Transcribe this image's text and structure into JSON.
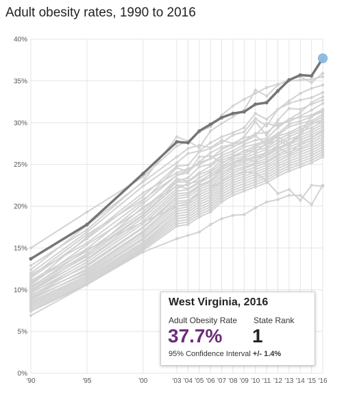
{
  "title": "Adult obesity rates, 1990 to 2016",
  "colors": {
    "highlight": "#757575",
    "background_series": "#d2d2d2",
    "endpoint": "#8fbce0",
    "rate": "#6b2c7a",
    "grid": "#e4e4e4"
  },
  "chart_data": {
    "type": "line",
    "title": "Adult obesity rates, 1990 to 2016",
    "xlabel": "",
    "ylabel": "",
    "x": [
      1990,
      1995,
      2000,
      2003,
      2004,
      2005,
      2006,
      2007,
      2008,
      2009,
      2010,
      2011,
      2012,
      2013,
      2014,
      2015,
      2016
    ],
    "x_tick_labels": [
      "'90",
      "'95",
      "'00",
      "'03",
      "'04",
      "'05",
      "'06",
      "'07",
      "'08",
      "'09",
      "'10",
      "'11",
      "'12",
      "'13",
      "'14",
      "'15",
      "'16"
    ],
    "y_ticks": [
      0,
      5,
      10,
      15,
      20,
      25,
      30,
      35,
      40
    ],
    "y_tick_labels": [
      "0%",
      "5%",
      "10%",
      "15%",
      "20%",
      "25%",
      "30%",
      "35%",
      "40%"
    ],
    "ylim": [
      0,
      40
    ],
    "grid": true,
    "highlight": {
      "name": "West Virginia",
      "values": [
        13.7,
        17.8,
        23.9,
        27.7,
        27.6,
        29.0,
        29.8,
        30.6,
        31.1,
        31.3,
        32.2,
        32.4,
        33.8,
        35.1,
        35.7,
        35.6,
        37.7
      ]
    },
    "series": [
      {
        "values": [
          15.0,
          19.3,
          23.5,
          27.2,
          27.8,
          28.9,
          29.5,
          30.9,
          32.0,
          32.8,
          33.5,
          34.2,
          34.6,
          35.0,
          35.1,
          35.2,
          35.5
        ]
      },
      {
        "values": [
          12.9,
          17.2,
          23.0,
          28.3,
          27.8,
          27.0,
          29.0,
          29.9,
          30.7,
          31.5,
          33.9,
          33.2,
          34.5,
          35.2,
          35.5,
          34.8,
          35.9
        ]
      },
      {
        "values": [
          12.0,
          16.9,
          22.4,
          25.2,
          26.3,
          26.6,
          27.6,
          28.3,
          28.8,
          29.4,
          31.1,
          30.4,
          31.6,
          32.6,
          33.5,
          34.1,
          34.5
        ]
      },
      {
        "values": [
          11.4,
          16.1,
          21.2,
          24.8,
          24.9,
          26.5,
          26.9,
          27.6,
          28.5,
          28.9,
          30.5,
          29.6,
          31.6,
          32.3,
          32.7,
          33.0,
          33.6
        ]
      },
      {
        "values": [
          11.8,
          15.6,
          20.6,
          24.6,
          24.1,
          25.3,
          26.4,
          27.1,
          27.4,
          28.3,
          30.1,
          28.5,
          30.3,
          31.7,
          31.6,
          32.2,
          32.7
        ]
      },
      {
        "values": [
          11.1,
          14.9,
          20.3,
          23.7,
          24.3,
          25.2,
          25.7,
          26.8,
          27.4,
          27.8,
          28.7,
          28.8,
          29.9,
          30.1,
          30.8,
          31.5,
          32.3
        ]
      },
      {
        "values": [
          10.6,
          15.4,
          19.7,
          23.0,
          23.4,
          24.7,
          25.0,
          26.1,
          26.6,
          27.4,
          27.9,
          28.1,
          29.4,
          30.4,
          30.6,
          30.9,
          31.6
        ]
      },
      {
        "values": [
          10.9,
          14.6,
          19.3,
          23.3,
          23.0,
          24.0,
          24.8,
          25.8,
          26.3,
          27.1,
          27.4,
          27.9,
          28.7,
          29.8,
          30.2,
          30.7,
          31.4
        ]
      },
      {
        "values": [
          10.4,
          14.3,
          19.0,
          22.9,
          22.9,
          23.8,
          24.3,
          25.5,
          26.0,
          26.6,
          27.2,
          27.7,
          28.5,
          29.5,
          29.9,
          30.2,
          31.0
        ]
      },
      {
        "values": [
          10.2,
          14.0,
          18.9,
          22.5,
          22.5,
          23.4,
          24.1,
          25.1,
          25.9,
          26.3,
          27.0,
          27.3,
          28.4,
          28.8,
          29.5,
          30.0,
          30.7
        ]
      },
      {
        "values": [
          9.8,
          13.7,
          18.6,
          22.1,
          22.7,
          23.0,
          23.8,
          24.8,
          25.6,
          26.0,
          26.7,
          27.0,
          28.0,
          28.6,
          29.2,
          29.8,
          30.4
        ]
      },
      {
        "values": [
          10.0,
          13.6,
          18.2,
          21.8,
          22.0,
          22.8,
          23.5,
          24.6,
          25.3,
          25.8,
          26.3,
          26.8,
          27.6,
          28.3,
          28.9,
          29.4,
          30.1
        ]
      },
      {
        "values": [
          9.6,
          13.3,
          17.9,
          21.5,
          21.6,
          22.5,
          23.1,
          24.3,
          25.1,
          25.5,
          26.0,
          26.4,
          27.3,
          28.0,
          28.5,
          29.1,
          29.8
        ]
      },
      {
        "values": [
          9.3,
          13.0,
          17.5,
          21.2,
          21.4,
          22.3,
          22.9,
          24.0,
          24.8,
          25.3,
          25.8,
          26.2,
          27.0,
          27.6,
          28.2,
          28.8,
          29.5
        ]
      },
      {
        "values": [
          9.7,
          12.8,
          17.4,
          20.9,
          21.1,
          22.0,
          22.6,
          23.7,
          24.6,
          25.0,
          25.5,
          26.0,
          26.8,
          27.4,
          27.9,
          28.5,
          29.2
        ]
      },
      {
        "values": [
          9.1,
          12.5,
          17.0,
          20.6,
          20.7,
          21.7,
          22.3,
          23.4,
          24.3,
          24.7,
          25.2,
          25.7,
          26.5,
          27.1,
          27.6,
          28.2,
          28.9
        ]
      },
      {
        "values": [
          9.4,
          12.3,
          16.8,
          20.3,
          20.5,
          21.4,
          22.0,
          23.1,
          24.0,
          24.5,
          25.0,
          25.4,
          26.2,
          26.8,
          27.3,
          27.9,
          28.6
        ]
      },
      {
        "values": [
          8.8,
          12.1,
          16.5,
          20.0,
          20.2,
          21.1,
          21.7,
          22.9,
          23.7,
          24.2,
          24.7,
          25.2,
          26.0,
          26.5,
          27.0,
          27.6,
          28.3
        ]
      },
      {
        "values": [
          9.0,
          11.9,
          16.2,
          19.7,
          19.9,
          20.8,
          21.4,
          22.6,
          23.4,
          23.9,
          24.4,
          24.9,
          25.7,
          26.2,
          26.8,
          27.3,
          28.0
        ]
      },
      {
        "values": [
          8.6,
          11.7,
          16.0,
          19.4,
          19.6,
          20.5,
          21.1,
          22.3,
          23.1,
          23.6,
          24.1,
          24.6,
          25.4,
          26.0,
          26.5,
          27.0,
          27.7
        ]
      },
      {
        "values": [
          8.4,
          11.5,
          15.7,
          19.1,
          19.3,
          20.2,
          20.8,
          22.0,
          22.8,
          23.3,
          23.8,
          24.3,
          25.1,
          25.7,
          26.2,
          26.7,
          27.4
        ]
      },
      {
        "values": [
          8.2,
          11.3,
          15.5,
          18.8,
          19.0,
          19.9,
          20.5,
          21.7,
          22.5,
          23.0,
          23.5,
          24.0,
          24.8,
          25.4,
          25.9,
          26.4,
          27.1
        ]
      },
      {
        "values": [
          8.0,
          11.1,
          15.3,
          18.5,
          18.7,
          19.6,
          20.2,
          21.4,
          22.2,
          22.7,
          23.2,
          23.7,
          24.5,
          25.1,
          25.6,
          26.1,
          26.8
        ]
      },
      {
        "values": [
          7.8,
          10.9,
          15.1,
          18.2,
          18.4,
          19.3,
          19.9,
          21.1,
          21.9,
          22.4,
          22.9,
          23.4,
          24.2,
          24.8,
          25.3,
          25.8,
          26.5
        ]
      },
      {
        "values": [
          7.6,
          10.7,
          14.9,
          17.9,
          18.1,
          19.0,
          19.6,
          20.8,
          21.6,
          22.1,
          22.6,
          23.1,
          23.9,
          24.5,
          25.0,
          25.5,
          26.2
        ]
      },
      {
        "values": [
          7.4,
          10.6,
          14.7,
          17.6,
          17.8,
          18.7,
          19.3,
          20.5,
          21.3,
          21.8,
          22.3,
          22.8,
          23.6,
          24.2,
          24.7,
          25.2,
          25.9
        ]
      },
      {
        "values": [
          6.9,
          10.6,
          14.5,
          16.1,
          16.5,
          16.9,
          17.8,
          18.5,
          18.9,
          19.0,
          19.8,
          20.5,
          20.8,
          21.3,
          21.3,
          20.2,
          22.5
        ]
      },
      {
        "values": [
          10.3,
          14.8,
          18.1,
          20.0,
          20.3,
          21.7,
          22.3,
          22.9,
          23.7,
          24.1,
          24.0,
          23.0,
          21.5,
          22.0,
          20.7,
          22.5,
          22.4
        ]
      },
      {
        "values": [
          11.6,
          16.6,
          20.8,
          23.7,
          24.0,
          25.9,
          26.0,
          25.2,
          25.8,
          26.7,
          26.5,
          27.6,
          28.3,
          27.5,
          28.7,
          30.8,
          31.3
        ]
      },
      {
        "values": [
          12.4,
          17.7,
          22.9,
          25.9,
          26.9,
          27.3,
          27.0,
          27.9,
          27.5,
          28.2,
          28.5,
          29.9,
          29.6,
          30.4,
          31.2,
          32.4,
          33.1
        ]
      },
      {
        "values": [
          10.7,
          16.3,
          21.6,
          24.0,
          24.5,
          25.0,
          25.7,
          26.4,
          27.1,
          27.7,
          28.4,
          27.4,
          27.9,
          27.2,
          28.6,
          29.9,
          30.1
        ]
      },
      {
        "values": [
          9.9,
          14.2,
          19.9,
          22.4,
          22.1,
          22.9,
          23.5,
          24.4,
          25.0,
          25.8,
          25.3,
          26.6,
          27.0,
          26.3,
          27.5,
          28.2,
          29.0
        ]
      }
    ]
  },
  "tooltip": {
    "state": "West Virginia, 2016",
    "rate_label": "Adult Obesity Rate",
    "rank_label": "State Rank",
    "rate_value": "37.7%",
    "rank_value": "1",
    "ci_label": "95% Confidence Interval",
    "ci_value": "+/- 1.4%"
  }
}
